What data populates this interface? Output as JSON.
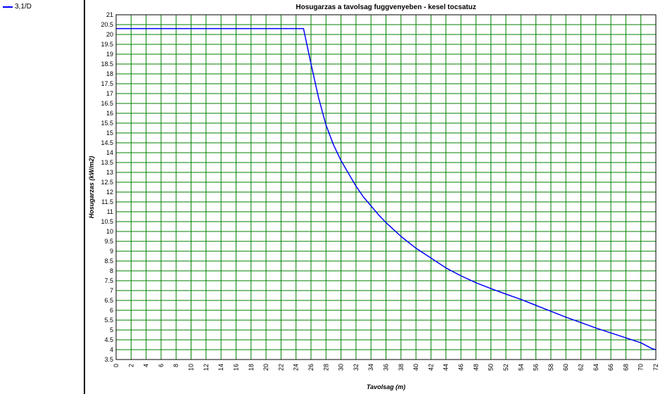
{
  "legend": {
    "items": [
      {
        "label": "3,1/D",
        "color": "#0000ff"
      }
    ]
  },
  "chart_data": {
    "type": "line",
    "title": "Hosugarzas a tavolsag fuggvenyeben - kesel tocsatuz",
    "xlabel": "Tavolsag (m)",
    "ylabel": "Hosugarzas (kW/m2)",
    "xlim": [
      0,
      72
    ],
    "ylim": [
      3.5,
      21
    ],
    "x_ticks": [
      0,
      2,
      4,
      6,
      8,
      10,
      12,
      14,
      16,
      18,
      20,
      22,
      24,
      26,
      28,
      30,
      32,
      34,
      36,
      38,
      40,
      42,
      44,
      46,
      48,
      50,
      52,
      54,
      56,
      58,
      60,
      62,
      64,
      66,
      68,
      70,
      72
    ],
    "y_ticks": [
      "3.5",
      "4",
      "4.5",
      "5",
      "5.5",
      "6",
      "6.5",
      "7",
      "7.5",
      "8",
      "8.5",
      "9",
      "9.5",
      "10",
      "10.5",
      "11",
      "11.5",
      "12",
      "12.5",
      "13",
      "13.5",
      "14",
      "14.5",
      "15",
      "15.5",
      "16",
      "16.5",
      "17",
      "17.5",
      "18",
      "18.5",
      "19",
      "19.5",
      "20",
      "20.5",
      "21"
    ],
    "grid": true,
    "grid_color": "#008000",
    "legend_position": "left-panel",
    "series": [
      {
        "name": "3,1/D",
        "color": "#0000ff",
        "points": [
          [
            0,
            20.3
          ],
          [
            25,
            20.3
          ],
          [
            26,
            18.5
          ],
          [
            27,
            16.8
          ],
          [
            28,
            15.4
          ],
          [
            29,
            14.4
          ],
          [
            30,
            13.6
          ],
          [
            31,
            12.95
          ],
          [
            32,
            12.3
          ],
          [
            33,
            11.75
          ],
          [
            34,
            11.3
          ],
          [
            35,
            10.85
          ],
          [
            36,
            10.45
          ],
          [
            37,
            10.1
          ],
          [
            38,
            9.75
          ],
          [
            40,
            9.15
          ],
          [
            42,
            8.65
          ],
          [
            44,
            8.15
          ],
          [
            46,
            7.75
          ],
          [
            48,
            7.4
          ],
          [
            50,
            7.1
          ],
          [
            52,
            6.82
          ],
          [
            54,
            6.55
          ],
          [
            56,
            6.25
          ],
          [
            58,
            5.95
          ],
          [
            60,
            5.65
          ],
          [
            62,
            5.38
          ],
          [
            64,
            5.1
          ],
          [
            66,
            4.85
          ],
          [
            68,
            4.6
          ],
          [
            70,
            4.35
          ],
          [
            71.5,
            4.05
          ],
          [
            72,
            4.0
          ]
        ]
      }
    ]
  }
}
